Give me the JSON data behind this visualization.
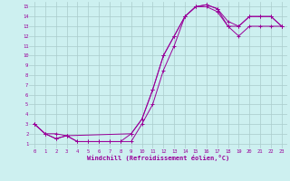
{
  "xlabel": "Windchill (Refroidissement éolien,°C)",
  "bg_color": "#cdf0f0",
  "line_color": "#990099",
  "grid_color": "#aacccc",
  "xlim": [
    -0.5,
    23.5
  ],
  "ylim": [
    0.5,
    15.5
  ],
  "xticks": [
    0,
    1,
    2,
    3,
    4,
    5,
    6,
    7,
    8,
    9,
    10,
    11,
    12,
    13,
    14,
    15,
    16,
    17,
    18,
    19,
    20,
    21,
    22,
    23
  ],
  "yticks": [
    1,
    2,
    3,
    4,
    5,
    6,
    7,
    8,
    9,
    10,
    11,
    12,
    13,
    14,
    15
  ],
  "line1_x": [
    0,
    1,
    2,
    3,
    4,
    5,
    6,
    7,
    8,
    9,
    10,
    11,
    12,
    13,
    14,
    15,
    16,
    17,
    18,
    19,
    20,
    21,
    22,
    23
  ],
  "line1_y": [
    3,
    2,
    2,
    1.8,
    1.2,
    1.2,
    1.2,
    1.2,
    1.2,
    1.2,
    3,
    5,
    8.5,
    11,
    14,
    15,
    15,
    14.5,
    13,
    13,
    14,
    14,
    14,
    13
  ],
  "line2_x": [
    0,
    1,
    2,
    3,
    4,
    5,
    6,
    7,
    8,
    9,
    10,
    11,
    12,
    13,
    14,
    15,
    16,
    17,
    18,
    19,
    20,
    21,
    22,
    23
  ],
  "line2_y": [
    3,
    2,
    1.5,
    1.8,
    1.2,
    1.2,
    1.2,
    1.2,
    1.2,
    2,
    3.5,
    6.5,
    10,
    12,
    14,
    15,
    15.2,
    14.8,
    13,
    12,
    13,
    13,
    13,
    13
  ],
  "line3_x": [
    0,
    1,
    2,
    3,
    9,
    10,
    11,
    12,
    13,
    14,
    15,
    16,
    17,
    18,
    19,
    20,
    21,
    22,
    23
  ],
  "line3_y": [
    3,
    2,
    1.5,
    1.8,
    2,
    3.5,
    6.5,
    10,
    12,
    14,
    15,
    15.2,
    14.8,
    13.5,
    13,
    14,
    14,
    14,
    13
  ]
}
